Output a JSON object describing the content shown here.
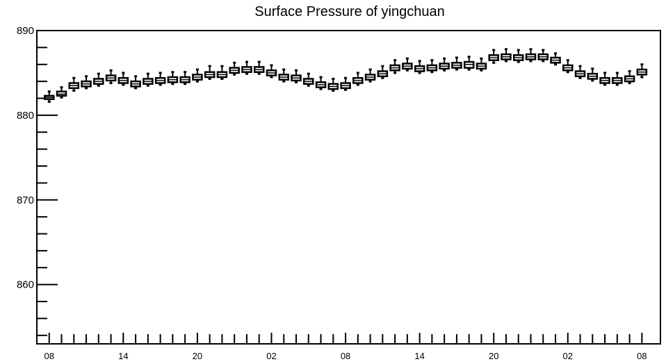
{
  "chart_data": {
    "type": "box",
    "title": "Surface Pressure of yingchuan",
    "xlabel": "",
    "ylabel": "",
    "ylim": [
      853,
      890
    ],
    "xlim": [
      -1.0,
      49.5
    ],
    "yticks": [
      860,
      870,
      880,
      890
    ],
    "xticks": [
      {
        "x": 0,
        "label": "08"
      },
      {
        "x": 6,
        "label": "14"
      },
      {
        "x": 12,
        "label": "20"
      },
      {
        "x": 18,
        "label": "02"
      },
      {
        "x": 24,
        "label": "08"
      },
      {
        "x": 30,
        "label": "14"
      },
      {
        "x": 36,
        "label": "20"
      },
      {
        "x": 42,
        "label": "02"
      },
      {
        "x": 48,
        "label": "08"
      }
    ],
    "grid": false,
    "series": [
      {
        "x": [
          0,
          1,
          2,
          3,
          4,
          5,
          6,
          7,
          8,
          9,
          10,
          11,
          12,
          13,
          14,
          15,
          16,
          17,
          18,
          19,
          20,
          21,
          22,
          23,
          24,
          25,
          26,
          27,
          28,
          29,
          30,
          31,
          32,
          33,
          34,
          35,
          36,
          37,
          38,
          39,
          40,
          41,
          42,
          43,
          44,
          45,
          46,
          47,
          48
        ],
        "min": [
          881.6,
          882.1,
          882.9,
          883.2,
          883.5,
          883.8,
          883.6,
          883.2,
          883.5,
          883.6,
          883.7,
          883.7,
          884.0,
          884.3,
          884.3,
          884.8,
          884.9,
          884.9,
          884.5,
          884.0,
          883.9,
          883.5,
          883.1,
          882.9,
          883.0,
          883.6,
          884.0,
          884.4,
          885.0,
          885.3,
          885.0,
          885.1,
          885.3,
          885.4,
          885.4,
          885.3,
          886.2,
          886.4,
          886.3,
          886.4,
          886.4,
          886.0,
          885.1,
          884.4,
          884.1,
          883.6,
          883.6,
          883.8,
          884.5
        ],
        "q1": [
          881.9,
          882.3,
          883.2,
          883.4,
          883.7,
          884.1,
          883.8,
          883.4,
          883.7,
          883.8,
          883.9,
          883.9,
          884.2,
          884.5,
          884.5,
          885.0,
          885.1,
          885.1,
          884.7,
          884.2,
          884.1,
          883.7,
          883.3,
          883.1,
          883.2,
          883.8,
          884.2,
          884.6,
          885.3,
          885.5,
          885.2,
          885.3,
          885.5,
          885.6,
          885.6,
          885.5,
          886.5,
          886.6,
          886.5,
          886.6,
          886.6,
          886.2,
          885.3,
          884.6,
          884.3,
          883.8,
          883.8,
          884.0,
          884.8
        ],
        "median": [
          882.1,
          882.5,
          883.5,
          883.7,
          884.0,
          884.4,
          884.1,
          883.7,
          884.0,
          884.1,
          884.2,
          884.2,
          884.5,
          884.8,
          884.8,
          885.3,
          885.4,
          885.4,
          885.0,
          884.5,
          884.4,
          884.0,
          883.6,
          883.4,
          883.5,
          884.1,
          884.5,
          884.9,
          885.6,
          885.8,
          885.5,
          885.6,
          885.8,
          885.9,
          886.0,
          885.8,
          886.8,
          886.9,
          886.8,
          886.9,
          886.9,
          886.5,
          885.6,
          884.9,
          884.6,
          884.1,
          884.1,
          884.3,
          885.1
        ],
        "q3": [
          882.3,
          882.8,
          883.8,
          884.0,
          884.3,
          884.7,
          884.4,
          884.0,
          884.3,
          884.4,
          884.5,
          884.5,
          884.8,
          885.1,
          885.1,
          885.6,
          885.7,
          885.7,
          885.3,
          884.8,
          884.7,
          884.3,
          883.9,
          883.7,
          883.8,
          884.4,
          884.8,
          885.2,
          885.9,
          886.1,
          885.8,
          885.9,
          886.1,
          886.2,
          886.3,
          886.1,
          887.1,
          887.2,
          887.1,
          887.2,
          887.2,
          886.8,
          885.9,
          885.2,
          884.9,
          884.4,
          884.4,
          884.6,
          885.4
        ],
        "max": [
          882.8,
          883.3,
          884.4,
          884.6,
          884.9,
          885.3,
          885.0,
          884.6,
          884.9,
          885.0,
          885.1,
          885.1,
          885.4,
          885.8,
          885.8,
          886.2,
          886.3,
          886.3,
          885.9,
          885.4,
          885.3,
          884.9,
          884.5,
          884.3,
          884.4,
          885.0,
          885.4,
          885.8,
          886.5,
          886.7,
          886.4,
          886.5,
          886.7,
          886.8,
          886.9,
          886.7,
          887.7,
          887.8,
          887.7,
          887.8,
          887.7,
          887.3,
          886.5,
          885.8,
          885.5,
          885.0,
          885.0,
          885.2,
          886.0
        ]
      }
    ]
  }
}
